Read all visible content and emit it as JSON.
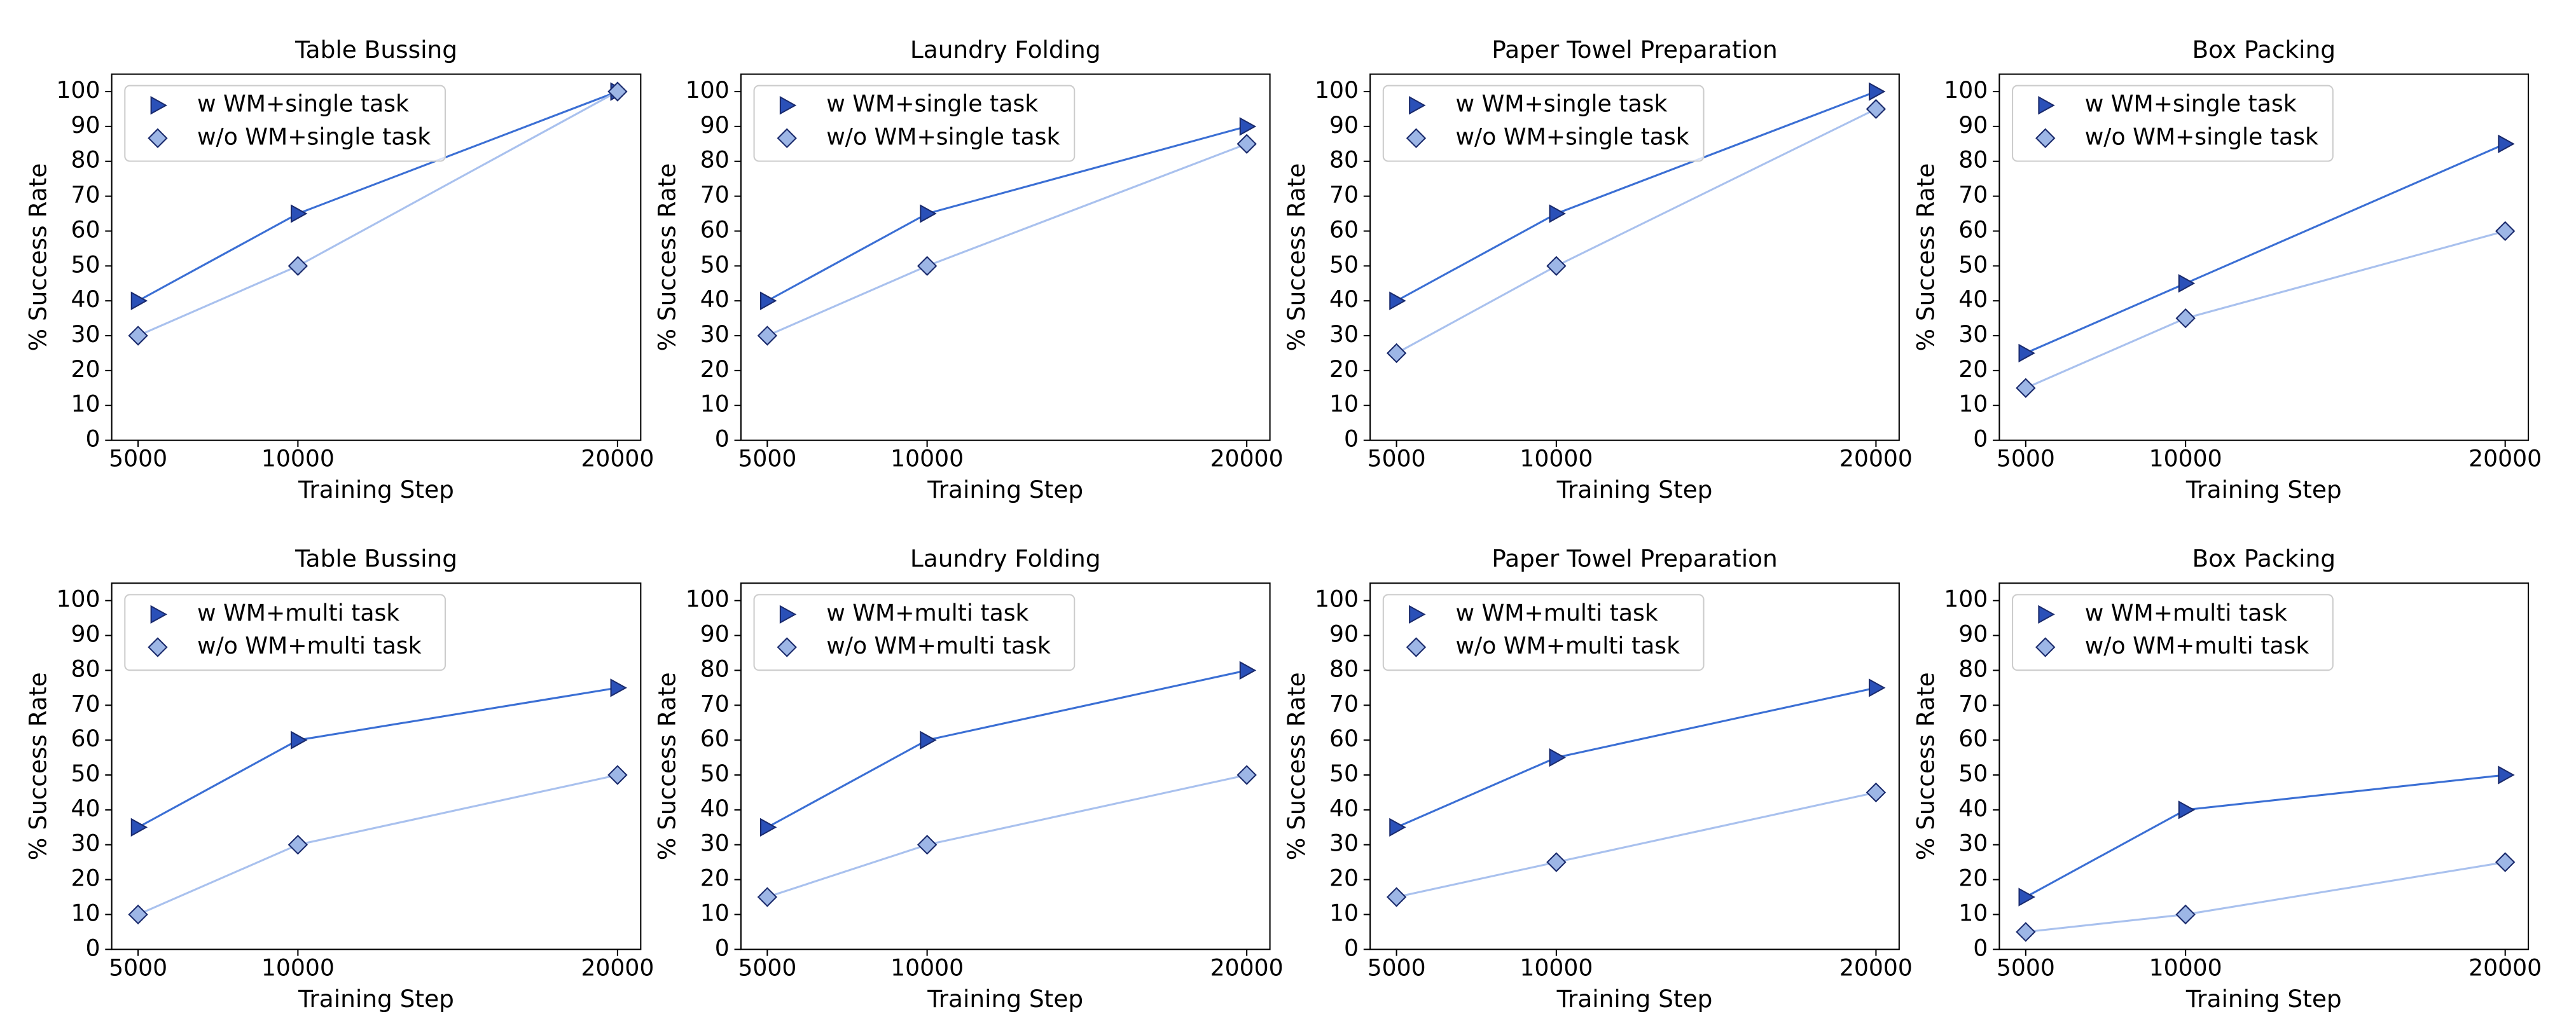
{
  "chart_data": [
    {
      "type": "line",
      "title": "Table Bussing",
      "xlabel": "Training Step",
      "ylabel": "% Success Rate",
      "x": [
        5000,
        10000,
        20000
      ],
      "xlim": [
        4175,
        20725
      ],
      "xticks": [
        5000,
        10000,
        20000
      ],
      "ylim": [
        0,
        105
      ],
      "yticks": [
        0,
        10,
        20,
        30,
        40,
        50,
        60,
        70,
        80,
        90,
        100
      ],
      "legend": "upper left",
      "series": [
        {
          "name": "w WM+single task",
          "color": "#3b6fd4",
          "marker_color": "#2a50b8",
          "marker": "triangle-right",
          "values": [
            40,
            65,
            100
          ]
        },
        {
          "name": "w/o WM+single task",
          "color": "#a9c1ee",
          "marker_color": "#9db6e6",
          "marker": "diamond",
          "values": [
            30,
            50,
            100
          ]
        }
      ]
    },
    {
      "type": "line",
      "title": "Laundry Folding",
      "xlabel": "Training Step",
      "ylabel": "% Success Rate",
      "x": [
        5000,
        10000,
        20000
      ],
      "xlim": [
        4175,
        20725
      ],
      "xticks": [
        5000,
        10000,
        20000
      ],
      "ylim": [
        0,
        105
      ],
      "yticks": [
        0,
        10,
        20,
        30,
        40,
        50,
        60,
        70,
        80,
        90,
        100
      ],
      "legend": "upper left",
      "series": [
        {
          "name": "w WM+single task",
          "color": "#3b6fd4",
          "marker_color": "#2a50b8",
          "marker": "triangle-right",
          "values": [
            40,
            65,
            90
          ]
        },
        {
          "name": "w/o WM+single task",
          "color": "#a9c1ee",
          "marker_color": "#9db6e6",
          "marker": "diamond",
          "values": [
            30,
            50,
            85
          ]
        }
      ]
    },
    {
      "type": "line",
      "title": "Paper Towel Preparation",
      "xlabel": "Training Step",
      "ylabel": "% Success Rate",
      "x": [
        5000,
        10000,
        20000
      ],
      "xlim": [
        4175,
        20725
      ],
      "xticks": [
        5000,
        10000,
        20000
      ],
      "ylim": [
        0,
        105
      ],
      "yticks": [
        0,
        10,
        20,
        30,
        40,
        50,
        60,
        70,
        80,
        90,
        100
      ],
      "legend": "upper left",
      "series": [
        {
          "name": "w WM+single task",
          "color": "#3b6fd4",
          "marker_color": "#2a50b8",
          "marker": "triangle-right",
          "values": [
            40,
            65,
            100
          ]
        },
        {
          "name": "w/o WM+single task",
          "color": "#a9c1ee",
          "marker_color": "#9db6e6",
          "marker": "diamond",
          "values": [
            25,
            50,
            95
          ]
        }
      ]
    },
    {
      "type": "line",
      "title": "Box Packing",
      "xlabel": "Training Step",
      "ylabel": "% Success Rate",
      "x": [
        5000,
        10000,
        20000
      ],
      "xlim": [
        4175,
        20725
      ],
      "xticks": [
        5000,
        10000,
        20000
      ],
      "ylim": [
        0,
        105
      ],
      "yticks": [
        0,
        10,
        20,
        30,
        40,
        50,
        60,
        70,
        80,
        90,
        100
      ],
      "legend": "upper left",
      "series": [
        {
          "name": "w WM+single task",
          "color": "#3b6fd4",
          "marker_color": "#2a50b8",
          "marker": "triangle-right",
          "values": [
            25,
            45,
            85
          ]
        },
        {
          "name": "w/o WM+single task",
          "color": "#a9c1ee",
          "marker_color": "#9db6e6",
          "marker": "diamond",
          "values": [
            15,
            35,
            60
          ]
        }
      ]
    },
    {
      "type": "line",
      "title": "Table Bussing",
      "xlabel": "Training Step",
      "ylabel": "% Success Rate",
      "x": [
        5000,
        10000,
        20000
      ],
      "xlim": [
        4175,
        20725
      ],
      "xticks": [
        5000,
        10000,
        20000
      ],
      "ylim": [
        0,
        105
      ],
      "yticks": [
        0,
        10,
        20,
        30,
        40,
        50,
        60,
        70,
        80,
        90,
        100
      ],
      "legend": "upper left",
      "series": [
        {
          "name": "w WM+multi task",
          "color": "#3b6fd4",
          "marker_color": "#2a50b8",
          "marker": "triangle-right",
          "values": [
            35,
            60,
            75
          ]
        },
        {
          "name": "w/o WM+multi task",
          "color": "#a9c1ee",
          "marker_color": "#9db6e6",
          "marker": "diamond",
          "values": [
            10,
            30,
            50
          ]
        }
      ]
    },
    {
      "type": "line",
      "title": "Laundry Folding",
      "xlabel": "Training Step",
      "ylabel": "% Success Rate",
      "x": [
        5000,
        10000,
        20000
      ],
      "xlim": [
        4175,
        20725
      ],
      "xticks": [
        5000,
        10000,
        20000
      ],
      "ylim": [
        0,
        105
      ],
      "yticks": [
        0,
        10,
        20,
        30,
        40,
        50,
        60,
        70,
        80,
        90,
        100
      ],
      "legend": "upper left",
      "series": [
        {
          "name": "w WM+multi task",
          "color": "#3b6fd4",
          "marker_color": "#2a50b8",
          "marker": "triangle-right",
          "values": [
            35,
            60,
            80
          ]
        },
        {
          "name": "w/o WM+multi task",
          "color": "#a9c1ee",
          "marker_color": "#9db6e6",
          "marker": "diamond",
          "values": [
            15,
            30,
            50
          ]
        }
      ]
    },
    {
      "type": "line",
      "title": "Paper Towel Preparation",
      "xlabel": "Training Step",
      "ylabel": "% Success Rate",
      "x": [
        5000,
        10000,
        20000
      ],
      "xlim": [
        4175,
        20725
      ],
      "xticks": [
        5000,
        10000,
        20000
      ],
      "ylim": [
        0,
        105
      ],
      "yticks": [
        0,
        10,
        20,
        30,
        40,
        50,
        60,
        70,
        80,
        90,
        100
      ],
      "legend": "upper left",
      "series": [
        {
          "name": "w WM+multi task",
          "color": "#3b6fd4",
          "marker_color": "#2a50b8",
          "marker": "triangle-right",
          "values": [
            35,
            55,
            75
          ]
        },
        {
          "name": "w/o WM+multi task",
          "color": "#a9c1ee",
          "marker_color": "#9db6e6",
          "marker": "diamond",
          "values": [
            15,
            25,
            45
          ]
        }
      ]
    },
    {
      "type": "line",
      "title": "Box Packing",
      "xlabel": "Training Step",
      "ylabel": "% Success Rate",
      "x": [
        5000,
        10000,
        20000
      ],
      "xlim": [
        4175,
        20725
      ],
      "xticks": [
        5000,
        10000,
        20000
      ],
      "ylim": [
        0,
        105
      ],
      "yticks": [
        0,
        10,
        20,
        30,
        40,
        50,
        60,
        70,
        80,
        90,
        100
      ],
      "legend": "upper left",
      "series": [
        {
          "name": "w WM+multi task",
          "color": "#3b6fd4",
          "marker_color": "#2a50b8",
          "marker": "triangle-right",
          "values": [
            15,
            40,
            50
          ]
        },
        {
          "name": "w/o WM+multi task",
          "color": "#a9c1ee",
          "marker_color": "#9db6e6",
          "marker": "diamond",
          "values": [
            5,
            10,
            25
          ]
        }
      ]
    }
  ]
}
